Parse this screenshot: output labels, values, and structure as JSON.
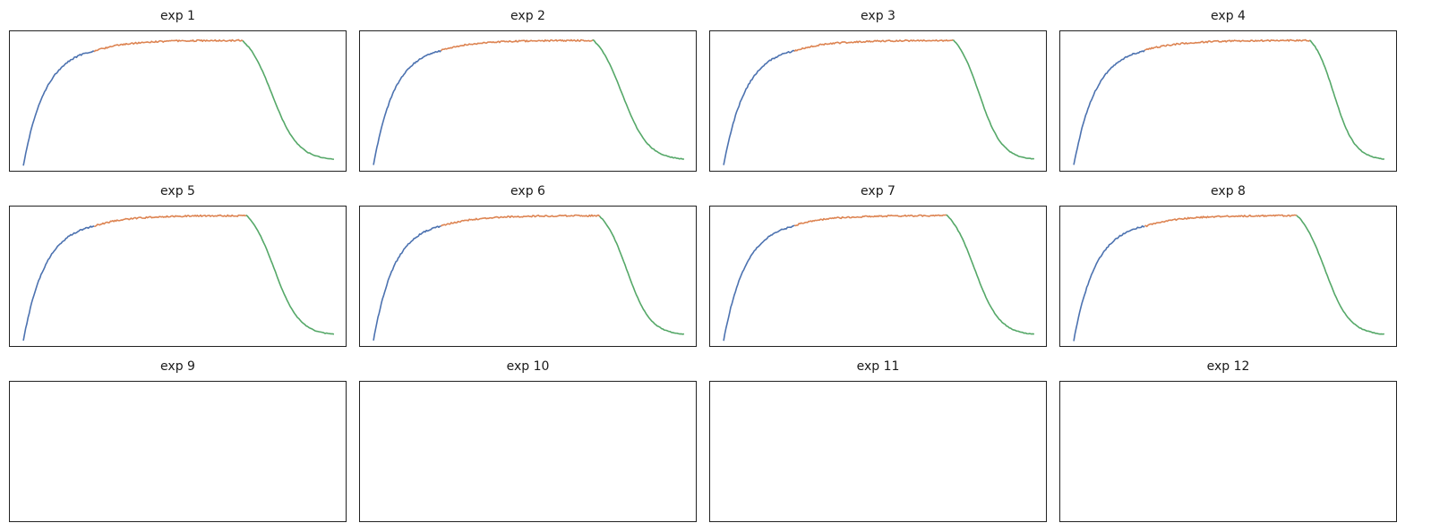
{
  "colors": {
    "phase_1": "#4c72b0",
    "phase_2": "#dd8452",
    "phase_3": "#55a868"
  },
  "chart_data": [
    {
      "type": "line",
      "title": "exp 1",
      "xlabel": "",
      "ylabel": "",
      "grid": false,
      "legend": "none",
      "x_transitions": [
        0.25,
        0.69
      ],
      "x_end": 0.96,
      "series": [
        {
          "values": []
        },
        {
          "values": []
        },
        {
          "values": []
        }
      ]
    },
    {
      "type": "line",
      "title": "exp 2",
      "xlabel": "",
      "ylabel": "",
      "grid": false,
      "legend": "none",
      "x_transitions": [
        0.24,
        0.69
      ],
      "x_end": 0.96,
      "series": [
        {
          "values": []
        },
        {
          "values": []
        },
        {
          "values": []
        }
      ]
    },
    {
      "type": "line",
      "title": "exp 3",
      "xlabel": "",
      "ylabel": "",
      "grid": false,
      "legend": "none",
      "x_transitions": [
        0.25,
        0.72
      ],
      "x_end": 0.96,
      "series": [
        {
          "values": []
        },
        {
          "values": []
        },
        {
          "values": []
        }
      ]
    },
    {
      "type": "line",
      "title": "exp 4",
      "xlabel": "",
      "ylabel": "",
      "grid": false,
      "legend": "none",
      "x_transitions": [
        0.25,
        0.74
      ],
      "x_end": 0.96,
      "series": [
        {
          "values": []
        },
        {
          "values": []
        },
        {
          "values": []
        }
      ]
    },
    {
      "type": "line",
      "title": "exp 5",
      "xlabel": "",
      "ylabel": "",
      "grid": false,
      "legend": "none",
      "x_transitions": [
        0.25,
        0.7
      ],
      "x_end": 0.96,
      "series": [
        {
          "values": []
        },
        {
          "values": []
        },
        {
          "values": []
        }
      ]
    },
    {
      "type": "line",
      "title": "exp 6",
      "xlabel": "",
      "ylabel": "",
      "grid": false,
      "legend": "none",
      "x_transitions": [
        0.24,
        0.71
      ],
      "x_end": 0.96,
      "series": [
        {
          "values": []
        },
        {
          "values": []
        },
        {
          "values": []
        }
      ]
    },
    {
      "type": "line",
      "title": "exp 7",
      "xlabel": "",
      "ylabel": "",
      "grid": false,
      "legend": "none",
      "x_transitions": [
        0.25,
        0.7
      ],
      "x_end": 0.96,
      "series": [
        {
          "values": []
        },
        {
          "values": []
        },
        {
          "values": []
        }
      ]
    },
    {
      "type": "line",
      "title": "exp 8",
      "xlabel": "",
      "ylabel": "",
      "grid": false,
      "legend": "none",
      "x_transitions": [
        0.25,
        0.7
      ],
      "x_end": 0.96,
      "series": [
        {
          "values": []
        },
        {
          "values": []
        },
        {
          "values": []
        }
      ]
    },
    {
      "type": "line",
      "title": "exp 9",
      "xlabel": "",
      "ylabel": "",
      "grid": false,
      "legend": "none",
      "series": []
    },
    {
      "type": "line",
      "title": "exp 10",
      "xlabel": "",
      "ylabel": "",
      "grid": false,
      "legend": "none",
      "series": []
    },
    {
      "type": "line",
      "title": "exp 11",
      "xlabel": "",
      "ylabel": "",
      "grid": false,
      "legend": "none",
      "series": []
    },
    {
      "type": "line",
      "title": "exp 12",
      "xlabel": "",
      "ylabel": "",
      "grid": false,
      "legend": "none",
      "series": []
    }
  ]
}
